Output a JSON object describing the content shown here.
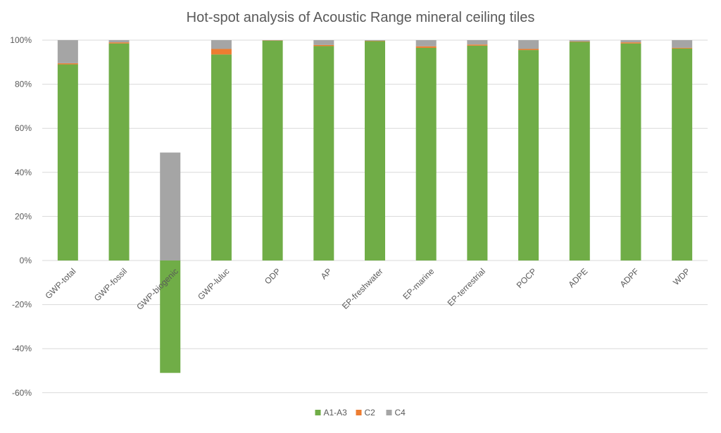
{
  "chart_data": {
    "type": "bar",
    "stacked": true,
    "title": "Hot-spot analysis of Acoustic Range mineral ceiling tiles",
    "xlabel": "",
    "ylabel": "",
    "ylim": [
      -60,
      100
    ],
    "ytick_step": 20,
    "ytick_format": "percent",
    "grid": true,
    "legend": "bottom",
    "categories": [
      "GWP-total",
      "GWP-fossil",
      "GWP-biogenic",
      "GWP-luluc",
      "ODP",
      "AP",
      "EP-freshwater",
      "EP-marine",
      "EP-terrestrial",
      "POCP",
      "ADPE",
      "ADPF",
      "WDP"
    ],
    "series": [
      {
        "name": "A1-A3",
        "color": "#70ad47",
        "values": [
          89,
          98.5,
          -51,
          93.5,
          99.8,
          97.3,
          99.6,
          96.5,
          97.5,
          95.5,
          99.2,
          98.5,
          96.2
        ]
      },
      {
        "name": "C2",
        "color": "#ed7d31",
        "values": [
          0.5,
          0.5,
          0,
          2.5,
          0.1,
          0.5,
          0.1,
          0.7,
          0.5,
          0.5,
          0.2,
          0.5,
          0.3
        ]
      },
      {
        "name": "C4",
        "color": "#a5a5a5",
        "values": [
          10.5,
          1,
          49,
          4,
          0.1,
          2.2,
          0.3,
          2.8,
          2,
          4,
          0.6,
          1,
          3.5
        ]
      }
    ]
  }
}
